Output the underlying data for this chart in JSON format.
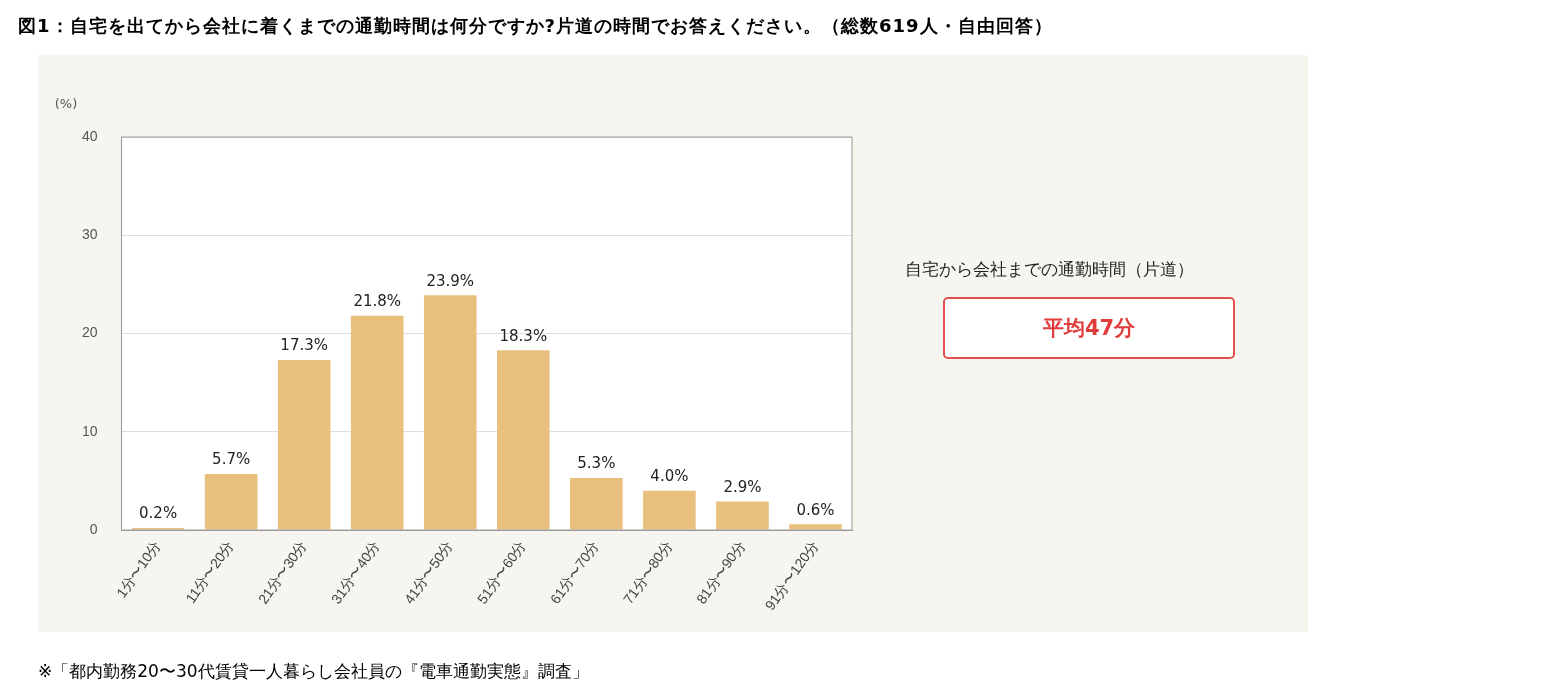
{
  "chart_data": {
    "type": "bar",
    "title": "図1：自宅を出てから会社に着くまでの通勤時間は何分ですか?片道の時間でお答えください。（総数619人・自由回答）",
    "ylabel": "(%)",
    "categories": [
      "1分〜10分",
      "11分〜20分",
      "21分〜30分",
      "31分〜40分",
      "41分〜50分",
      "51分〜60分",
      "61分〜70分",
      "71分〜80分",
      "81分〜90分",
      "91分〜120分"
    ],
    "values": [
      0.2,
      5.7,
      17.3,
      21.8,
      23.9,
      18.3,
      5.3,
      4.0,
      2.9,
      0.6
    ],
    "value_labels": [
      "0.2%",
      "5.7%",
      "17.3%",
      "21.8%",
      "23.9%",
      "18.3%",
      "5.3%",
      "4.0%",
      "2.9%",
      "0.6%"
    ],
    "color": "#e9bf7e",
    "ylim": [
      0,
      40
    ],
    "yticks": [
      0,
      10,
      20,
      30,
      40
    ],
    "grid": "y",
    "legend": false,
    "annotations": [
      "自宅から会社までの通勤時間（片道）",
      "平均47分",
      "※「都内勤務20〜30代賃貸一人暮らし会社員の『電車通勤実態』調査」"
    ]
  }
}
